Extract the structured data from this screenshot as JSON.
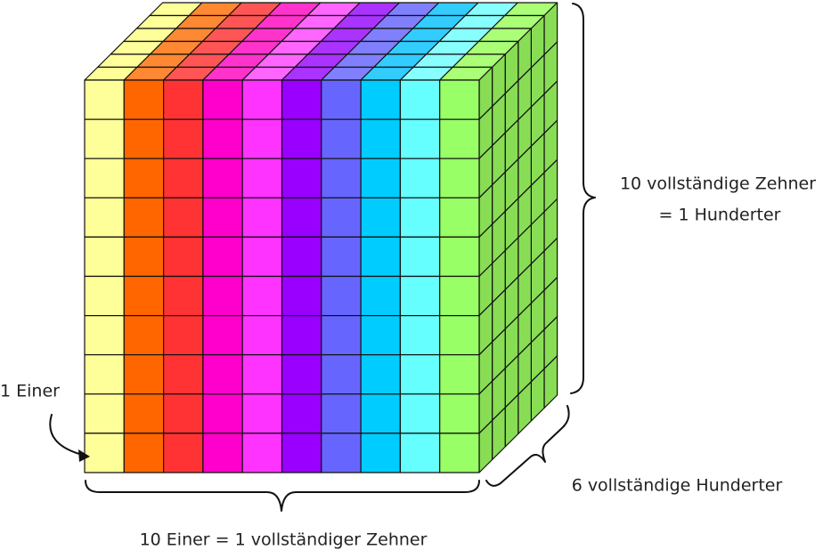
{
  "labels": {
    "height": [
      "10 vollständige Zehner",
      "= 1 Hunderter"
    ],
    "depth": "6 vollständige Hunderter",
    "width": "10 Einer = 1 vollständiger Zehner",
    "unit": "1 Einer"
  }
}
